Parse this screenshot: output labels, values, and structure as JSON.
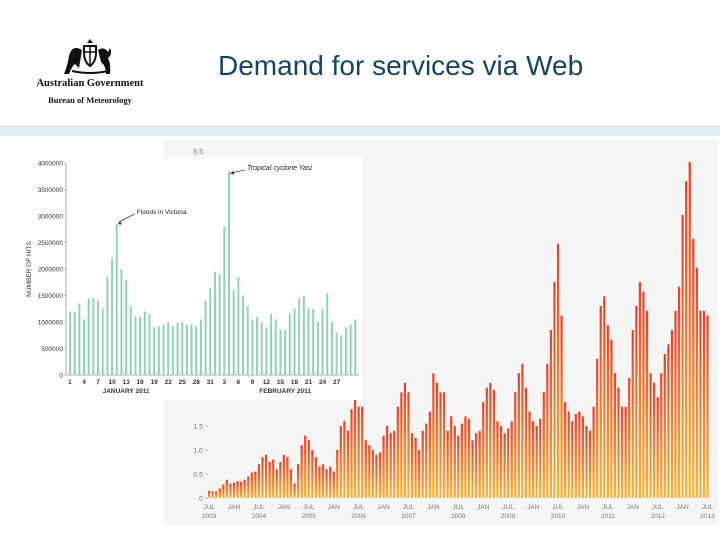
{
  "slide": {
    "title": "Demand for services via Web"
  },
  "logo": {
    "org_line1": "Australian Government",
    "org_line2": "Bureau of Meteorology",
    "crest_icon": "coat-of-arms-icon"
  },
  "colors": {
    "title": "#17455f",
    "band": "#dfeef6",
    "daily_bar": "#8fd3b2",
    "monthly_top": "#e8402a",
    "monthly_bottom": "#f7b731"
  },
  "chart_data": [
    {
      "id": "daily",
      "type": "bar",
      "ylabel": "NUMBER OF HITS",
      "ylim": [
        0,
        4000000
      ],
      "yticks": [
        "0",
        "500000",
        "1000000",
        "1500000",
        "2000000",
        "2500000",
        "3000000",
        "3500000",
        "4000000"
      ],
      "xtick_labels": [
        "1",
        "4",
        "7",
        "10",
        "13",
        "16",
        "19",
        "22",
        "25",
        "28",
        "31",
        "3",
        "6",
        "9",
        "12",
        "15",
        "18",
        "21",
        "24",
        "27"
      ],
      "month_labels": [
        "JANUARY 2011",
        "FEBRUARY 2011"
      ],
      "annotations": [
        {
          "text": "Floods in Victoria"
        },
        {
          "text": "Tropical cyclone Yasi"
        }
      ],
      "values": [
        1200000,
        1200000,
        1350000,
        1050000,
        1450000,
        1450000,
        1400000,
        1250000,
        1850000,
        2200000,
        2850000,
        2000000,
        1800000,
        1300000,
        1100000,
        1100000,
        1200000,
        1150000,
        900000,
        920000,
        950000,
        1000000,
        920000,
        980000,
        1000000,
        950000,
        950000,
        920000,
        1050000,
        1400000,
        1650000,
        1950000,
        1900000,
        2800000,
        3850000,
        1600000,
        1850000,
        1500000,
        1300000,
        1050000,
        1100000,
        1000000,
        900000,
        1150000,
        1050000,
        850000,
        850000,
        1150000,
        1250000,
        1450000,
        1500000,
        1250000,
        1250000,
        1000000,
        1250000,
        1550000,
        1000000,
        800000,
        750000,
        900000,
        950000,
        1050000
      ]
    },
    {
      "id": "monthly",
      "type": "bar",
      "ytick_labels": [
        "0",
        "0.5",
        "1.0",
        "1.5"
      ],
      "top_tick_label": "6.5",
      "xtick_labels": [
        "JUL 2003",
        "JAN",
        "JUL 2004",
        "JAN",
        "JUL 2005",
        "JAN",
        "JUL 2006",
        "JAN",
        "JUL 2007",
        "JAN",
        "JUL 2008",
        "JAN",
        "JUL 2009",
        "JAN",
        "JUL 2010",
        "JAN",
        "JUL 2011",
        "JAN",
        "JUL 2012",
        "JAN",
        "JUL 2013"
      ],
      "values": [
        0.15,
        0.14,
        0.14,
        0.2,
        0.28,
        0.38,
        0.3,
        0.32,
        0.35,
        0.34,
        0.38,
        0.45,
        0.53,
        0.55,
        0.7,
        0.85,
        0.9,
        0.75,
        0.8,
        0.6,
        0.75,
        0.9,
        0.85,
        0.6,
        0.3,
        0.7,
        1.1,
        1.3,
        1.2,
        1.0,
        0.85,
        0.65,
        0.7,
        0.6,
        0.65,
        0.55,
        1.0,
        1.5,
        1.6,
        1.4,
        1.85,
        2.1,
        1.9,
        1.9,
        1.2,
        1.1,
        1.0,
        0.9,
        0.95,
        1.3,
        1.5,
        1.35,
        1.4,
        1.9,
        2.2,
        2.4,
        2.2,
        1.35,
        1.25,
        1.0,
        1.4,
        1.55,
        1.8,
        2.6,
        2.4,
        2.2,
        2.2,
        1.4,
        1.7,
        1.5,
        1.3,
        1.55,
        1.7,
        1.65,
        1.2,
        1.35,
        1.4,
        2.0,
        2.3,
        2.4,
        2.25,
        1.6,
        1.5,
        1.35,
        1.45,
        1.6,
        2.2,
        2.6,
        2.8,
        2.3,
        1.8,
        1.6,
        1.5,
        1.65,
        2.2,
        2.8,
        3.5,
        4.5,
        5.3,
        3.8,
        2.0,
        1.8,
        1.6,
        1.75,
        1.8,
        1.7,
        1.5,
        1.4,
        1.9,
        2.9,
        4.0,
        4.2,
        3.6,
        3.3,
        2.6,
        2.3,
        1.9,
        1.9,
        2.5,
        3.5,
        4.0,
        4.5,
        4.3,
        3.9,
        2.6,
        2.4,
        2.1,
        2.6,
        3.0,
        3.2,
        3.5,
        3.9,
        4.4,
        5.9,
        6.6,
        7.0,
        5.4,
        4.8,
        3.9,
        3.9,
        3.8
      ]
    }
  ]
}
